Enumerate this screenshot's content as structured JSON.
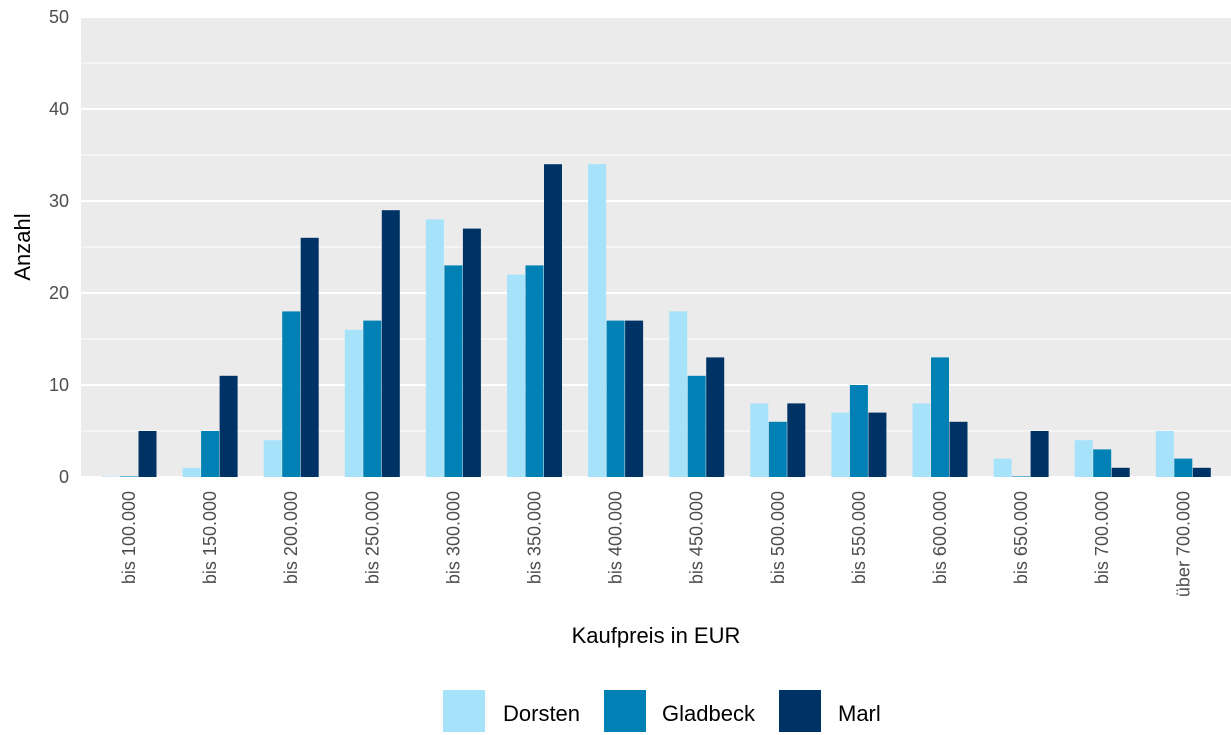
{
  "chart_data": {
    "type": "bar",
    "xlabel": "Kaufpreis in EUR",
    "ylabel": "Anzahl",
    "ylim": [
      0,
      50
    ],
    "yticks": [
      0,
      10,
      20,
      30,
      40,
      50
    ],
    "grid": true,
    "legend_position": "bottom",
    "categories": [
      "bis 100.000",
      "bis 150.000",
      "bis 200.000",
      "bis 250.000",
      "bis 300.000",
      "bis 350.000",
      "bis 400.000",
      "bis 450.000",
      "bis 500.000",
      "bis 550.000",
      "bis 600.000",
      "bis 650.000",
      "bis 700.000",
      "über 700.000"
    ],
    "series": [
      {
        "name": "Dorsten",
        "color": "#a6e3fa",
        "values": [
          0,
          1,
          4,
          16,
          28,
          22,
          34,
          18,
          8,
          7,
          8,
          2,
          4,
          5
        ]
      },
      {
        "name": "Gladbeck",
        "color": "#0081b5",
        "values": [
          0,
          5,
          18,
          17,
          23,
          23,
          17,
          11,
          6,
          10,
          13,
          0,
          3,
          2
        ]
      },
      {
        "name": "Marl",
        "color": "#003365",
        "values": [
          5,
          11,
          26,
          29,
          27,
          34,
          17,
          13,
          8,
          7,
          6,
          5,
          1,
          1
        ]
      }
    ]
  },
  "colors": {
    "panel_background": "#ebebeb",
    "gridline": "#ffffff"
  }
}
